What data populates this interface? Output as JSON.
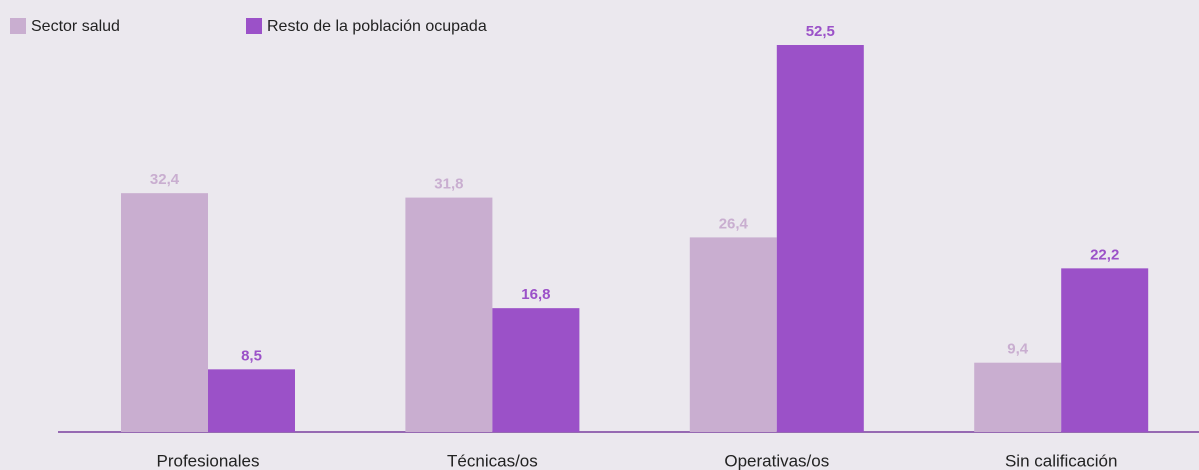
{
  "chart_data": {
    "type": "bar",
    "categories": [
      "Profesionales",
      "Técnicas/os",
      "Operativas/os",
      "Sin calificación"
    ],
    "series": [
      {
        "name": "Sector salud",
        "color": "#c9aed0",
        "values": [
          32.4,
          31.8,
          26.4,
          9.4
        ],
        "value_labels": [
          "32,4",
          "31,8",
          "26,4",
          "9,4"
        ]
      },
      {
        "name": "Resto de la población ocupada",
        "color": "#9b51c8",
        "values": [
          8.5,
          16.8,
          52.5,
          22.2
        ],
        "value_labels": [
          "8,5",
          "16,8",
          "52,5",
          "22,2"
        ]
      }
    ]
  }
}
